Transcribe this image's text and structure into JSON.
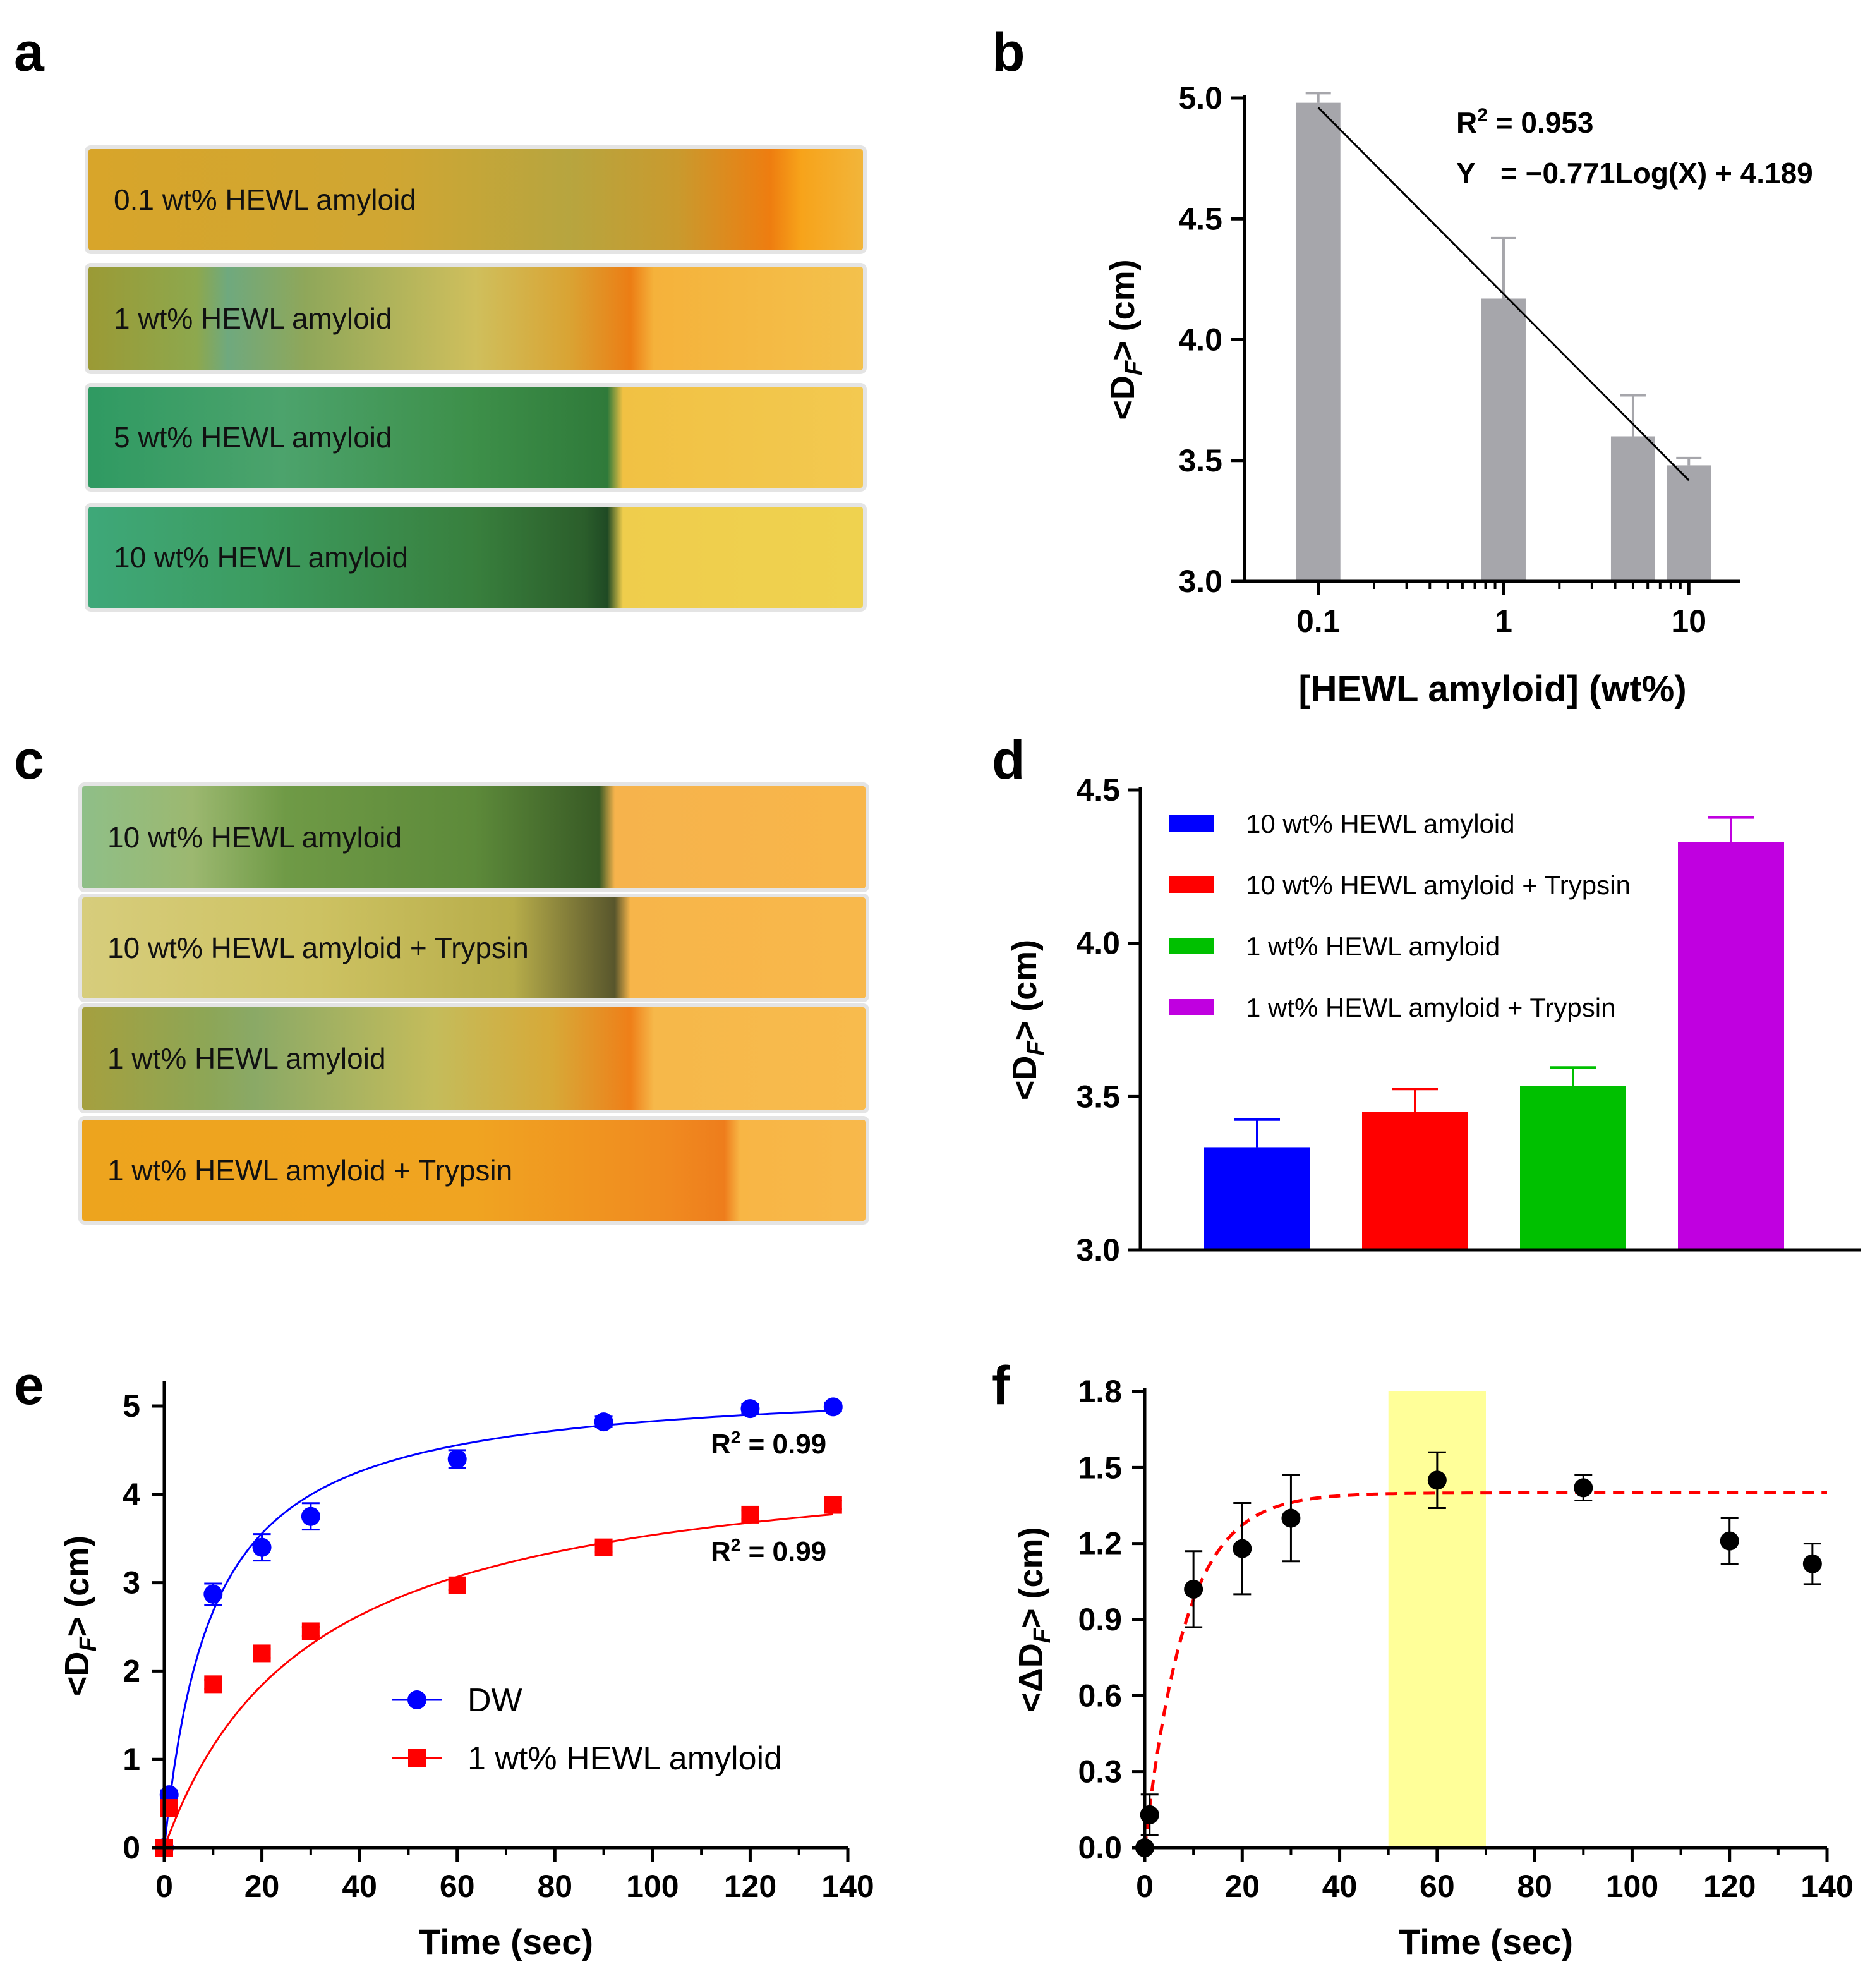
{
  "panels": {
    "a": "a",
    "b": "b",
    "c": "c",
    "d": "d",
    "e": "e",
    "f": "f"
  },
  "strips_a": [
    {
      "label": "0.1 wt% HEWL amyloid"
    },
    {
      "label": "1 wt% HEWL amyloid"
    },
    {
      "label": "5 wt% HEWL amyloid"
    },
    {
      "label": "10 wt% HEWL amyloid"
    }
  ],
  "strips_c": [
    {
      "label": "10 wt% HEWL amyloid"
    },
    {
      "label": "10 wt% HEWL amyloid + Trypsin"
    },
    {
      "label": "1  wt% HEWL amyloid"
    },
    {
      "label": "1  wt% HEWL amyloid + Trypsin"
    }
  ],
  "colors": {
    "bar_gray": "#a6a6ab",
    "blue": "#0000ff",
    "red": "#ff0000",
    "green": "#00c000",
    "purple": "#c000e0",
    "highlight": "#ffff99"
  },
  "chart_data": [
    {
      "id": "b",
      "type": "bar",
      "xscale": "log",
      "x": [
        0.1,
        1,
        5,
        10
      ],
      "values": [
        4.98,
        4.17,
        3.6,
        3.48
      ],
      "errors": [
        0.04,
        0.25,
        0.17,
        0.03
      ],
      "xticks": [
        "0.1",
        "1",
        "10"
      ],
      "yticks": [
        "3.0",
        "3.5",
        "4.0",
        "4.5",
        "5.0"
      ],
      "ylim": [
        3.0,
        5.0
      ],
      "xlabel": "[HEWL amyloid] (wt%)",
      "ylabel_main": "<D",
      "ylabel_sub": "F",
      "ylabel_tail": "> (cm)",
      "fit": {
        "slope": -0.771,
        "intercept": 4.189,
        "x_range": [
          0.1,
          10
        ]
      },
      "r2_label": "R",
      "r2_sup": "2",
      "r2_value": "= 0.953",
      "eq_label": "Y",
      "eq_value": "= −0.771Log(X) + 4.189"
    },
    {
      "id": "d",
      "type": "bar",
      "categories": [
        "10 wt% HEWL amyloid",
        "10 wt% HEWL amyloid + Trypsin",
        "1 wt% HEWL amyloid",
        "1 wt% HEWL amyloid + Trypsin"
      ],
      "values": [
        3.335,
        3.45,
        3.535,
        4.33
      ],
      "errors": [
        0.09,
        0.075,
        0.06,
        0.08
      ],
      "bar_colors": [
        "#0000ff",
        "#ff0000",
        "#00c000",
        "#c000e0"
      ],
      "yticks": [
        "3.0",
        "3.5",
        "4.0",
        "4.5"
      ],
      "ylim": [
        3.0,
        4.5
      ],
      "ylabel_main": "<D",
      "ylabel_sub": "F",
      "ylabel_tail": "> (cm)",
      "legend_position": "top-left"
    },
    {
      "id": "e",
      "type": "scatter",
      "series": [
        {
          "name": "DW",
          "color": "#0000ff",
          "marker": "circle",
          "x": [
            0,
            1,
            10,
            20,
            30,
            60,
            90,
            120,
            137
          ],
          "y": [
            0,
            0.6,
            2.87,
            3.4,
            3.75,
            4.4,
            4.82,
            4.97,
            4.99
          ],
          "errors": [
            0,
            0.05,
            0.12,
            0.15,
            0.15,
            0.1,
            0.06,
            0.05,
            0.05
          ],
          "fit": {
            "type": "hyperbolic",
            "ymax": 5.3,
            "k": 9.8
          }
        },
        {
          "name": "1 wt% HEWL amyloid",
          "color": "#ff0000",
          "marker": "square",
          "x": [
            0,
            1,
            10,
            20,
            30,
            60,
            90,
            120,
            137
          ],
          "y": [
            0,
            0.45,
            1.85,
            2.2,
            2.45,
            2.97,
            3.4,
            3.77,
            3.88
          ],
          "errors": [
            0,
            0.05,
            0.05,
            0.05,
            0.05,
            0.05,
            0.05,
            0.05,
            0.05
          ],
          "fit": {
            "type": "hyperbolic",
            "ymax": 4.6,
            "k": 30
          }
        }
      ],
      "xticks": [
        "0",
        "20",
        "40",
        "60",
        "80",
        "100",
        "120",
        "140"
      ],
      "yticks": [
        "0",
        "1",
        "2",
        "3",
        "4",
        "5"
      ],
      "xlim": [
        0,
        140
      ],
      "ylim": [
        0,
        5.25
      ],
      "xlabel": "Time (sec)",
      "ylabel_main": "<D",
      "ylabel_sub": "F",
      "ylabel_tail": "> (cm)",
      "annotations": [
        {
          "label": "R",
          "sup": "2",
          "value": "= 0.99"
        },
        {
          "label": "R",
          "sup": "2",
          "value": "= 0.99"
        }
      ],
      "legend_position": "bottom-center"
    },
    {
      "id": "f",
      "type": "scatter",
      "x": [
        0,
        1,
        10,
        20,
        30,
        60,
        90,
        120,
        137
      ],
      "y": [
        0,
        0.13,
        1.02,
        1.18,
        1.3,
        1.45,
        1.42,
        1.21,
        1.12
      ],
      "errors": [
        0,
        0.08,
        0.15,
        0.18,
        0.17,
        0.11,
        0.05,
        0.09,
        0.08
      ],
      "fit": {
        "type": "exponential_rise",
        "ymax": 1.4,
        "k": 0.12,
        "style": "dashed",
        "color": "#ff0000"
      },
      "highlight_x": [
        50,
        70
      ],
      "xticks": [
        "0",
        "20",
        "40",
        "60",
        "80",
        "100",
        "120",
        "140"
      ],
      "yticks": [
        "0.0",
        "0.3",
        "0.6",
        "0.9",
        "1.2",
        "1.5",
        "1.8"
      ],
      "xlim": [
        0,
        140
      ],
      "ylim": [
        0,
        1.8
      ],
      "xlabel": "Time (sec)",
      "ylabel_main": "<ΔD",
      "ylabel_sub": "F",
      "ylabel_tail": "> (cm)"
    }
  ]
}
